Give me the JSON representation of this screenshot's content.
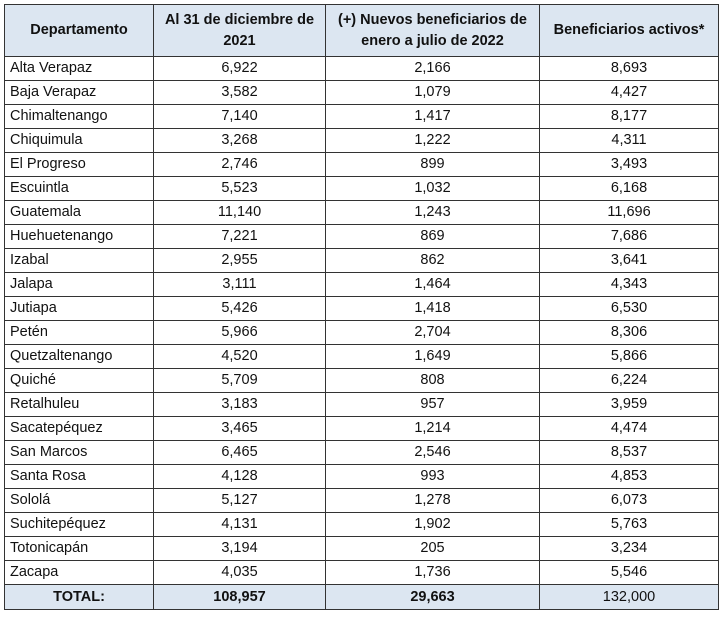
{
  "table": {
    "headers": [
      "Departamento",
      "Al 31 de diciembre de 2021",
      "(+) Nuevos beneficiarios de enero a julio de 2022",
      "Beneficiarios activos*"
    ],
    "rows": [
      [
        "Alta Verapaz",
        "6,922",
        "2,166",
        "8,693"
      ],
      [
        "Baja Verapaz",
        "3,582",
        "1,079",
        "4,427"
      ],
      [
        "Chimaltenango",
        "7,140",
        "1,417",
        "8,177"
      ],
      [
        "Chiquimula",
        "3,268",
        "1,222",
        "4,311"
      ],
      [
        "El Progreso",
        "2,746",
        "899",
        "3,493"
      ],
      [
        "Escuintla",
        "5,523",
        "1,032",
        "6,168"
      ],
      [
        "Guatemala",
        "11,140",
        "1,243",
        "11,696"
      ],
      [
        "Huehuetenango",
        "7,221",
        "869",
        "7,686"
      ],
      [
        "Izabal",
        "2,955",
        "862",
        "3,641"
      ],
      [
        "Jalapa",
        "3,111",
        "1,464",
        "4,343"
      ],
      [
        "Jutiapa",
        "5,426",
        "1,418",
        "6,530"
      ],
      [
        "Petén",
        "5,966",
        "2,704",
        "8,306"
      ],
      [
        "Quetzaltenango",
        "4,520",
        "1,649",
        "5,866"
      ],
      [
        "Quiché",
        "5,709",
        "808",
        "6,224"
      ],
      [
        "Retalhuleu",
        "3,183",
        "957",
        "3,959"
      ],
      [
        "Sacatepéquez",
        "3,465",
        "1,214",
        "4,474"
      ],
      [
        "San Marcos",
        "6,465",
        "2,546",
        "8,537"
      ],
      [
        "Santa Rosa",
        "4,128",
        "993",
        "4,853"
      ],
      [
        "Sololá",
        "5,127",
        "1,278",
        "6,073"
      ],
      [
        "Suchitepéquez",
        "4,131",
        "1,902",
        "5,763"
      ],
      [
        "Totonicapán",
        "3,194",
        "205",
        "3,234"
      ],
      [
        "Zacapa",
        "4,035",
        "1,736",
        "5,546"
      ]
    ],
    "total": [
      "TOTAL:",
      "108,957",
      "29,663",
      "132,000"
    ],
    "colors": {
      "header_bg": "#dce6f1",
      "border": "#333333"
    }
  }
}
